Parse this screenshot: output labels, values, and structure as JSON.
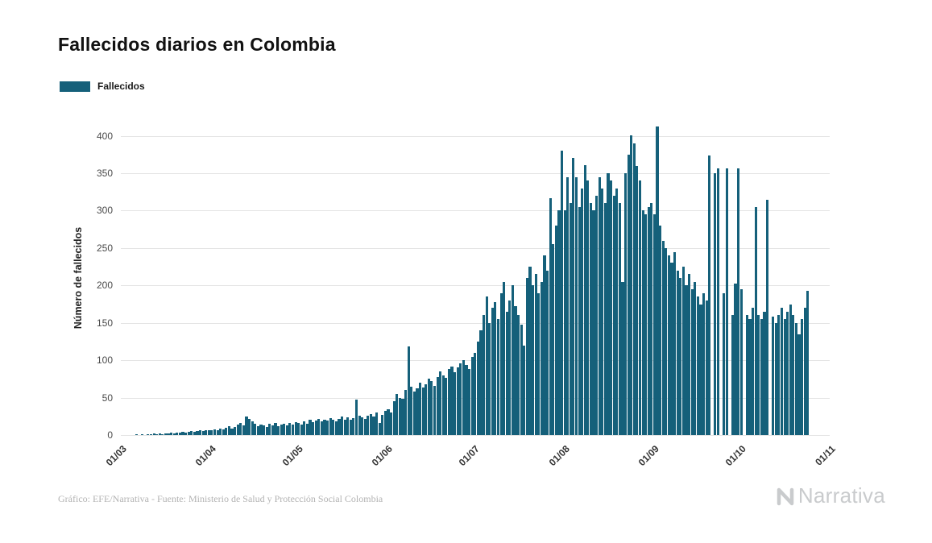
{
  "page": {
    "title": "Fallecidos diarios en Colombia",
    "footer": "Gráfico: EFE/Narrativa - Fuente: Ministerio de Salud y Protección Social Colombia",
    "brand": "Narrativa"
  },
  "legend": {
    "label": "Fallecidos",
    "color": "#15607a"
  },
  "chart_data": {
    "type": "bar",
    "title": "Fallecidos diarios en Colombia",
    "xlabel": "",
    "ylabel": "Número de fallecidos",
    "ylim": [
      0,
      420
    ],
    "grid": true,
    "legend_position": "top-left",
    "y_ticks": [
      0,
      50,
      100,
      150,
      200,
      250,
      300,
      350,
      400
    ],
    "x_tick_labels": [
      "01/03",
      "01/04",
      "01/05",
      "01/06",
      "01/07",
      "01/08",
      "01/09",
      "01/10",
      "01/11"
    ],
    "x_tick_day_offsets": [
      0,
      31,
      61,
      92,
      122,
      153,
      184,
      214,
      245
    ],
    "x_total_days": 246,
    "start_label": "01/03",
    "frequency": "daily",
    "series": [
      {
        "name": "Fallecidos",
        "color": "#15607a",
        "values": [
          0,
          0,
          0,
          0,
          0,
          1,
          0,
          1,
          0,
          1,
          1,
          2,
          1,
          2,
          1,
          2,
          2,
          3,
          2,
          3,
          3,
          4,
          3,
          4,
          5,
          4,
          5,
          6,
          5,
          7,
          6,
          6,
          8,
          7,
          9,
          8,
          10,
          12,
          9,
          11,
          14,
          16,
          13,
          25,
          22,
          18,
          15,
          12,
          14,
          13,
          11,
          15,
          13,
          16,
          12,
          14,
          15,
          13,
          16,
          14,
          17,
          16,
          14,
          18,
          15,
          20,
          17,
          19,
          22,
          18,
          21,
          19,
          23,
          20,
          18,
          22,
          25,
          21,
          24,
          20,
          23,
          47,
          26,
          24,
          22,
          26,
          28,
          25,
          30,
          16,
          27,
          32,
          34,
          30,
          45,
          55,
          50,
          48,
          60,
          118,
          65,
          58,
          62,
          70,
          64,
          68,
          75,
          72,
          66,
          78,
          85,
          80,
          76,
          88,
          92,
          84,
          90,
          96,
          100,
          94,
          88,
          105,
          110,
          125,
          140,
          160,
          185,
          150,
          170,
          178,
          155,
          190,
          205,
          165,
          180,
          200,
          172,
          160,
          148,
          120,
          210,
          225,
          200,
          215,
          190,
          205,
          240,
          220,
          317,
          255,
          280,
          300,
          380,
          300,
          345,
          310,
          370,
          345,
          305,
          330,
          361,
          340,
          310,
          300,
          320,
          345,
          330,
          310,
          350,
          340,
          320,
          330,
          310,
          205,
          350,
          375,
          401,
          390,
          360,
          340,
          300,
          295,
          305,
          310,
          295,
          412,
          280,
          260,
          250,
          240,
          230,
          245,
          220,
          210,
          225,
          200,
          215,
          195,
          205,
          185,
          175,
          190,
          180,
          374,
          0,
          350,
          357,
          0,
          190,
          357,
          0,
          160,
          203,
          356,
          195,
          0,
          160,
          155,
          170,
          305,
          160,
          155,
          165,
          315,
          0,
          158,
          150,
          160,
          170,
          155,
          165,
          175,
          160,
          150,
          135,
          155,
          170,
          193
        ]
      }
    ]
  }
}
